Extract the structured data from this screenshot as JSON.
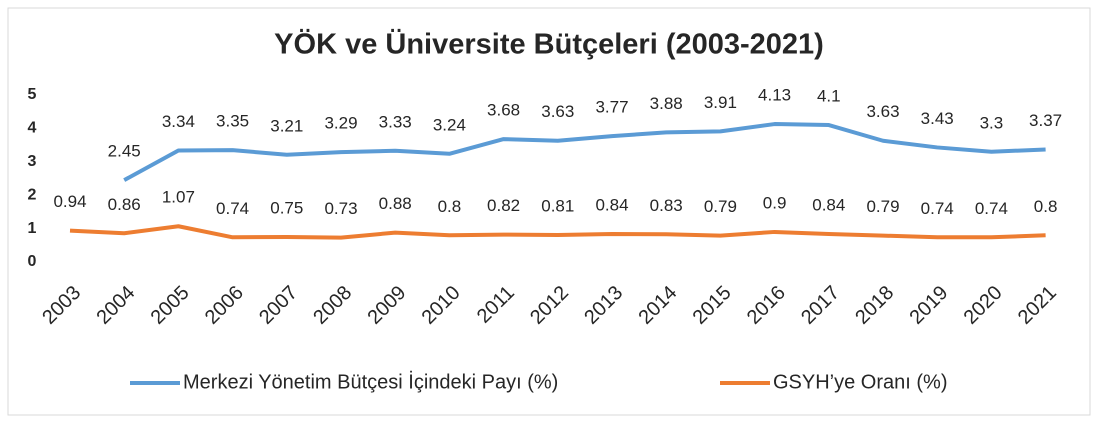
{
  "chart_data": {
    "type": "line",
    "title": "YÖK ve Üniversite Bütçeleri (2003-2021)",
    "categories": [
      "2003",
      "2004",
      "2005",
      "2006",
      "2007",
      "2008",
      "2009",
      "2010",
      "2011",
      "2012",
      "2013",
      "2014",
      "2015",
      "2016",
      "2017",
      "2018",
      "2019",
      "2020",
      "2021"
    ],
    "series": [
      {
        "name": "Merkezi Yönetim Bütçesi İçindeki Payı (%)",
        "color": "#5b9bd5",
        "values": [
          null,
          2.45,
          3.34,
          3.35,
          3.21,
          3.29,
          3.33,
          3.24,
          3.68,
          3.63,
          3.77,
          3.88,
          3.91,
          4.13,
          4.1,
          3.63,
          3.43,
          3.3,
          3.37
        ]
      },
      {
        "name": "GSYH’ye Oranı (%)",
        "color": "#ed7d31",
        "values": [
          0.94,
          0.86,
          1.07,
          0.74,
          0.75,
          0.73,
          0.88,
          0.8,
          0.82,
          0.81,
          0.84,
          0.83,
          0.79,
          0.9,
          0.84,
          0.79,
          0.74,
          0.74,
          0.8
        ]
      }
    ],
    "ylim": [
      0,
      5
    ],
    "yticks": [
      0,
      1,
      2,
      3,
      4,
      5
    ],
    "grid": false,
    "legend": "bottom"
  }
}
